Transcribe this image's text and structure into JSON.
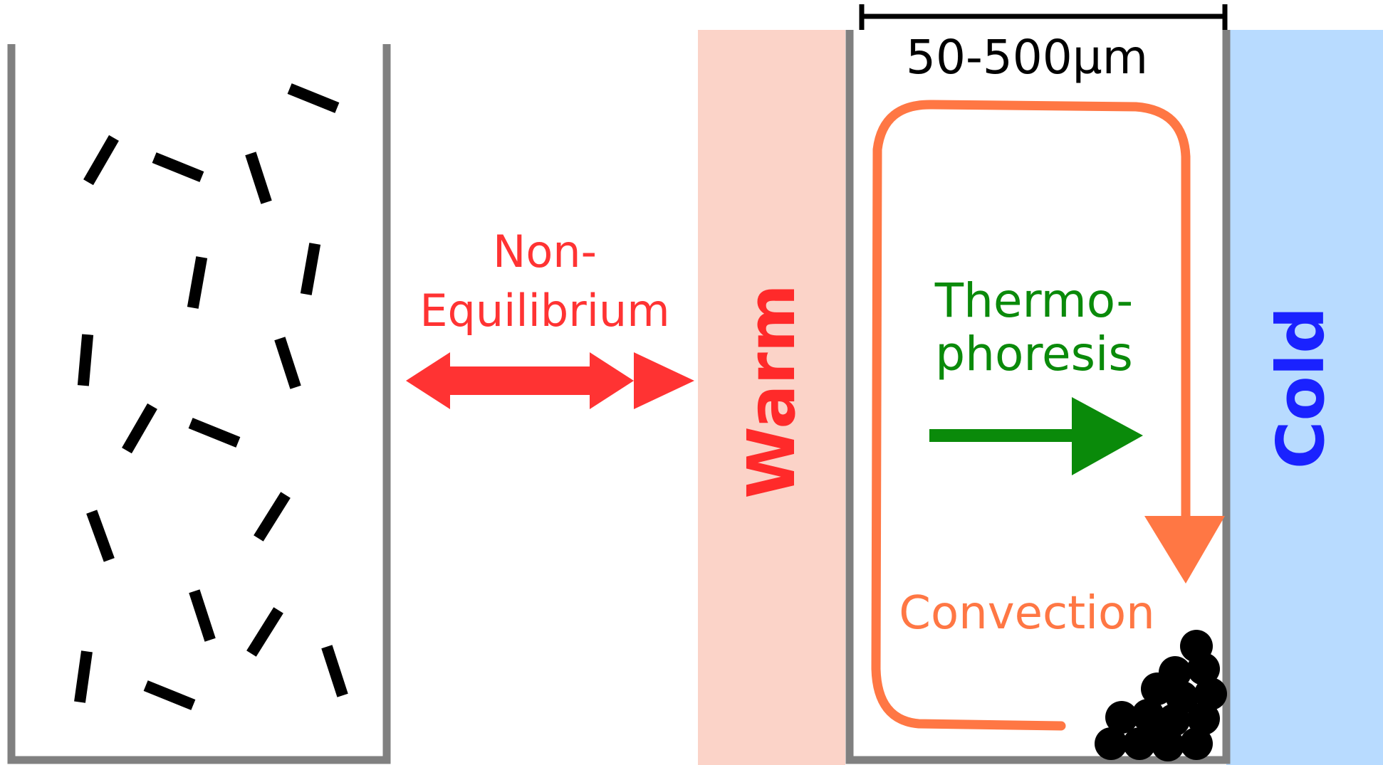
{
  "labels": {
    "non_eq_line1": "Non-",
    "non_eq_line2": "Equilibrium",
    "scale": "50-500µm",
    "warm": "Warm",
    "cold": "Cold",
    "thermo_line1": "Thermo-",
    "thermo_line2": "phoresis",
    "convection": "Convection"
  },
  "colors": {
    "wall": "#808080",
    "particle": "#000000",
    "non_eq": "#ff3333",
    "warm_fill": "#fbd3c8",
    "warm_text": "#ff2a2a",
    "cold_fill": "#b8dbff",
    "cold_text": "#1a22ff",
    "thermo": "#0a8a0a",
    "convection": "#ff7744",
    "scale_bar": "#000000"
  }
}
